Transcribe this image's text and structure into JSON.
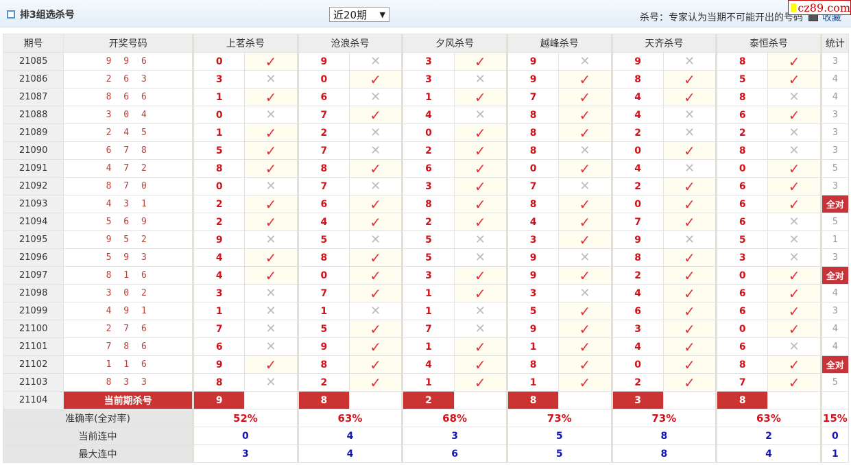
{
  "header": {
    "title": "排3组选杀号",
    "period_select": "近20期",
    "note": "杀号：专家认为当期不可能开出的号码",
    "favorite": "收藏",
    "logo": "cz89.com"
  },
  "columns": {
    "period": "期号",
    "draw": "开奖号码",
    "experts": [
      "上茗杀号",
      "沧浪杀号",
      "夕风杀号",
      "越峰杀号",
      "天齐杀号",
      "泰恒杀号"
    ],
    "stat": "统计"
  },
  "colors": {
    "accent": "#cc3333",
    "hit": "#e0303a",
    "miss": "#bbbbbb",
    "blue": "#1414b4"
  },
  "icons": {
    "hit": "check-icon",
    "miss": "cross-icon"
  },
  "rows": [
    {
      "period": "21085",
      "draw": "996",
      "kills": [
        0,
        9,
        3,
        9,
        9,
        8
      ],
      "stat": "3"
    },
    {
      "period": "21086",
      "draw": "263",
      "kills": [
        3,
        0,
        3,
        9,
        8,
        5
      ],
      "stat": "4"
    },
    {
      "period": "21087",
      "draw": "866",
      "kills": [
        1,
        6,
        1,
        7,
        4,
        8
      ],
      "stat": "4"
    },
    {
      "period": "21088",
      "draw": "304",
      "kills": [
        0,
        7,
        4,
        8,
        4,
        6
      ],
      "stat": "3"
    },
    {
      "period": "21089",
      "draw": "245",
      "kills": [
        1,
        2,
        0,
        8,
        2,
        2
      ],
      "stat": "3"
    },
    {
      "period": "21090",
      "draw": "678",
      "kills": [
        5,
        7,
        2,
        8,
        0,
        8
      ],
      "stat": "3"
    },
    {
      "period": "21091",
      "draw": "472",
      "kills": [
        8,
        8,
        6,
        0,
        4,
        0
      ],
      "stat": "5"
    },
    {
      "period": "21092",
      "draw": "870",
      "kills": [
        0,
        7,
        3,
        7,
        2,
        6
      ],
      "stat": "3"
    },
    {
      "period": "21093",
      "draw": "431",
      "kills": [
        2,
        6,
        8,
        8,
        0,
        6
      ],
      "stat": "全对"
    },
    {
      "period": "21094",
      "draw": "569",
      "kills": [
        2,
        4,
        2,
        4,
        7,
        6
      ],
      "stat": "5"
    },
    {
      "period": "21095",
      "draw": "952",
      "kills": [
        9,
        5,
        5,
        3,
        9,
        5
      ],
      "stat": "1"
    },
    {
      "period": "21096",
      "draw": "593",
      "kills": [
        4,
        8,
        5,
        9,
        8,
        3
      ],
      "stat": "3"
    },
    {
      "period": "21097",
      "draw": "816",
      "kills": [
        4,
        0,
        3,
        9,
        2,
        0
      ],
      "stat": "全对"
    },
    {
      "period": "21098",
      "draw": "302",
      "kills": [
        3,
        7,
        1,
        3,
        4,
        6
      ],
      "stat": "4"
    },
    {
      "period": "21099",
      "draw": "491",
      "kills": [
        1,
        1,
        1,
        5,
        6,
        6
      ],
      "stat": "3"
    },
    {
      "period": "21100",
      "draw": "276",
      "kills": [
        7,
        5,
        7,
        9,
        3,
        0
      ],
      "stat": "4"
    },
    {
      "period": "21101",
      "draw": "786",
      "kills": [
        6,
        9,
        1,
        1,
        4,
        6
      ],
      "stat": "4"
    },
    {
      "period": "21102",
      "draw": "116",
      "kills": [
        9,
        8,
        4,
        8,
        0,
        8
      ],
      "stat": "全对"
    },
    {
      "period": "21103",
      "draw": "833",
      "kills": [
        8,
        2,
        1,
        1,
        2,
        7
      ],
      "stat": "5"
    }
  ],
  "current": {
    "period": "21104",
    "label": "当前期杀号",
    "kills": [
      9,
      8,
      2,
      8,
      3,
      8
    ]
  },
  "summary": [
    {
      "label": "准确率(全对率)",
      "values": [
        "52%",
        "63%",
        "68%",
        "73%",
        "73%",
        "63%"
      ],
      "stat": "15%"
    },
    {
      "label": "当前连中",
      "values": [
        "0",
        "4",
        "3",
        "5",
        "8",
        "2"
      ],
      "stat": "0"
    },
    {
      "label": "最大连中",
      "values": [
        "3",
        "4",
        "6",
        "5",
        "8",
        "4"
      ],
      "stat": "1"
    }
  ]
}
